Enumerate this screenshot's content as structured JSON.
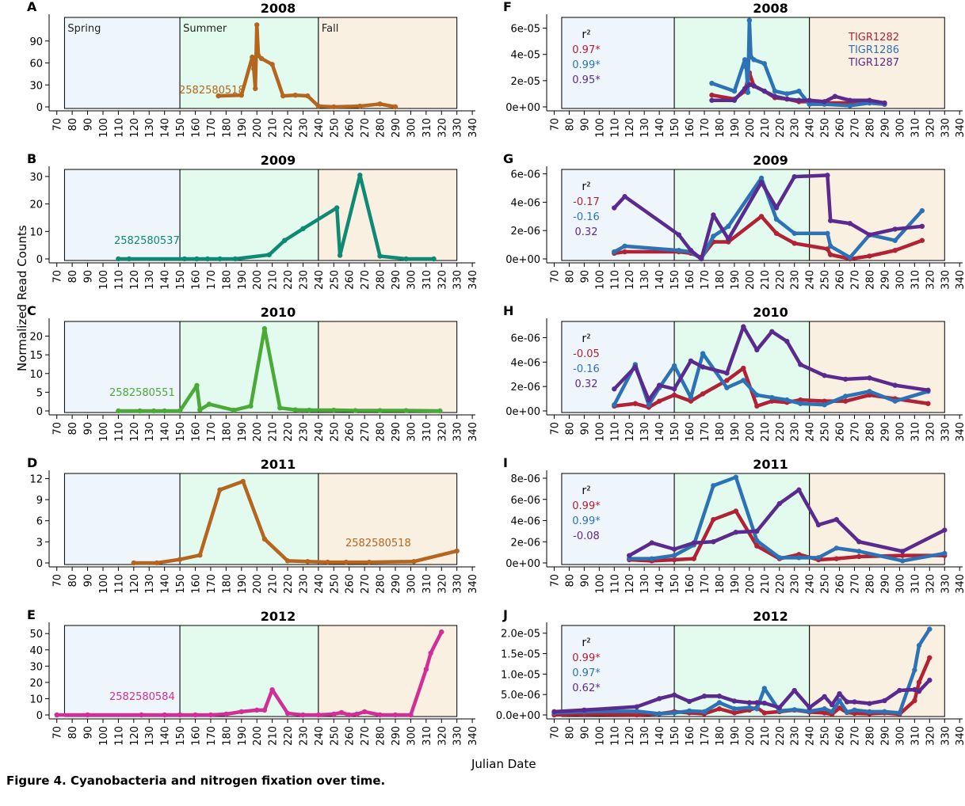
{
  "figure": {
    "caption": "Figure 4. Cyanobacteria and nitrogen fixation over time.",
    "x_axis_title": "Julian Date",
    "y_axis_title": "Normalized Read Counts",
    "season_labels": [
      "Spring",
      "Summer",
      "Fall"
    ],
    "season_colors": {
      "spring": "#eef6fb",
      "summer": "#e3fbee",
      "fall": "#faf0e2"
    },
    "legend": [
      {
        "name": "TIGR1282",
        "color": "#b22234"
      },
      {
        "name": "TIGR1286",
        "color": "#2c72b5"
      },
      {
        "name": "TIGR1287",
        "color": "#5b2a8e"
      }
    ],
    "r2_header": "r²"
  },
  "chart_data": [
    {
      "panel": "A",
      "title": "2008",
      "type": "line",
      "color": "#b5651d",
      "series_label": "2582580518",
      "xlim": [
        65,
        335
      ],
      "ylim": [
        0,
        120
      ],
      "yticks": [
        0,
        30,
        60,
        90
      ],
      "x": [
        175,
        190,
        197,
        198,
        199,
        200,
        201,
        203,
        210,
        217,
        225,
        233,
        240,
        250,
        267,
        280,
        290
      ],
      "y": [
        15,
        16,
        68,
        52,
        25,
        112,
        70,
        66,
        58,
        15,
        16,
        15,
        1,
        0,
        1,
        4,
        0
      ]
    },
    {
      "panel": "B",
      "title": "2009",
      "type": "line",
      "color": "#0e8a74",
      "series_label": "2582580537",
      "xlim": [
        65,
        335
      ],
      "ylim": [
        0,
        32
      ],
      "yticks": [
        0,
        10,
        20,
        30
      ],
      "x": [
        110,
        117,
        153,
        161,
        168,
        176,
        186,
        208,
        218,
        230,
        252,
        254,
        267,
        280,
        297,
        315
      ],
      "y": [
        0,
        0,
        0,
        0,
        0,
        0,
        0,
        1.5,
        6.7,
        11,
        18.6,
        1.3,
        30.5,
        1,
        0,
        0
      ]
    },
    {
      "panel": "C",
      "title": "2010",
      "type": "line",
      "color": "#4aaa36",
      "series_label": "2582580551",
      "xlim": [
        65,
        335
      ],
      "ylim": [
        0,
        23.5
      ],
      "yticks": [
        0,
        5,
        10,
        15,
        20
      ],
      "x": [
        110,
        124,
        133,
        140,
        150,
        161,
        163,
        169,
        185,
        196,
        205,
        215,
        225,
        234,
        250,
        264,
        280,
        297,
        319
      ],
      "y": [
        0,
        0,
        0,
        0,
        0,
        6.8,
        0.3,
        1.8,
        0.2,
        1.3,
        22,
        0.8,
        0.3,
        0.2,
        0.2,
        0.1,
        0.1,
        0.1,
        0
      ]
    },
    {
      "panel": "D",
      "title": "2011",
      "type": "line",
      "color": "#b5651d",
      "series_label": "2582580518",
      "xlim": [
        65,
        335
      ],
      "ylim": [
        0,
        12.5
      ],
      "yticks": [
        0,
        3,
        6,
        9,
        12
      ],
      "x": [
        120,
        135,
        150,
        163,
        176,
        191,
        205,
        220,
        233,
        246,
        258,
        273,
        302,
        330
      ],
      "y": [
        0,
        0,
        0.5,
        1.1,
        10.4,
        11.6,
        3.4,
        0.3,
        0.2,
        0.1,
        0.1,
        0.1,
        0.2,
        1.7
      ]
    },
    {
      "panel": "E",
      "title": "2012",
      "type": "line",
      "color": "#d12e97",
      "series_label": "2582580584",
      "xlim": [
        65,
        335
      ],
      "ylim": [
        0,
        54
      ],
      "yticks": [
        0,
        10,
        20,
        30,
        40,
        50
      ],
      "x": [
        70,
        90,
        125,
        140,
        150,
        160,
        170,
        180,
        190,
        200,
        205,
        210,
        220,
        230,
        240,
        250,
        255,
        260,
        265,
        270,
        280,
        290,
        300,
        310,
        313,
        320
      ],
      "y": [
        0,
        0,
        0,
        0,
        0,
        0,
        0,
        0.5,
        2,
        3,
        3,
        15.5,
        1,
        0,
        0,
        0.5,
        1.5,
        0,
        0.5,
        2,
        0,
        0,
        0,
        28,
        38,
        51
      ]
    },
    {
      "panel": "F",
      "title": "2008",
      "type": "line",
      "ylim": [
        0,
        6.7e-05
      ],
      "ytick_labels": [
        "0e+00",
        "2e-05",
        "4e-05",
        "6e-05"
      ],
      "yticks": [
        0,
        2e-05,
        4e-05,
        6e-05
      ],
      "xlim": [
        65,
        335
      ],
      "r2": [
        "0.97*",
        "0.99*",
        "0.95*"
      ],
      "show_legend": true,
      "series": [
        {
          "name": "TIGR1282",
          "color": "#b22234",
          "x": [
            175,
            190,
            197,
            200,
            203,
            210,
            217,
            225,
            233,
            240,
            250,
            267,
            280,
            290
          ],
          "y": [
            9e-06,
            6e-06,
            1.2e-05,
            2.6e-05,
            1.6e-05,
            1.2e-05,
            7e-06,
            6e-06,
            4e-06,
            4e-06,
            3e-06,
            3e-06,
            3e-06,
            2e-06
          ]
        },
        {
          "name": "TIGR1286",
          "color": "#2c72b5",
          "x": [
            175,
            190,
            197,
            198,
            199,
            200,
            201,
            203,
            210,
            217,
            225,
            233,
            240,
            250,
            267,
            280,
            290
          ],
          "y": [
            1.8e-05,
            1.2e-05,
            3.6e-05,
            3e-05,
            1.1e-05,
            6.6e-05,
            3.8e-05,
            3.6e-05,
            3.3e-05,
            1.2e-05,
            1e-05,
            1.2e-05,
            2e-06,
            2e-06,
            1e-06,
            3e-06,
            2e-06
          ]
        },
        {
          "name": "TIGR1287",
          "color": "#5b2a8e",
          "x": [
            175,
            190,
            197,
            200,
            203,
            210,
            217,
            225,
            233,
            240,
            250,
            257,
            267,
            280,
            290
          ],
          "y": [
            5e-06,
            5e-06,
            1.4e-05,
            1.7e-05,
            1.6e-05,
            1.2e-05,
            8e-06,
            6e-06,
            5e-06,
            5e-06,
            4e-06,
            8e-06,
            5e-06,
            5e-06,
            3e-06
          ]
        }
      ]
    },
    {
      "panel": "G",
      "title": "2009",
      "type": "line",
      "ylim": [
        0,
        6.2e-06
      ],
      "ytick_labels": [
        "0e+00",
        "2e-06",
        "4e-06",
        "6e-06"
      ],
      "yticks": [
        0,
        2e-06,
        4e-06,
        6e-06
      ],
      "xlim": [
        65,
        335
      ],
      "r2": [
        "-0.17",
        "-0.16",
        "0.32"
      ],
      "show_legend": false,
      "series": [
        {
          "name": "TIGR1282",
          "color": "#b22234",
          "x": [
            110,
            117,
            153,
            161,
            168,
            176,
            186,
            208,
            218,
            230,
            252,
            254,
            267,
            280,
            297,
            315
          ],
          "y": [
            4e-07,
            5e-07,
            5e-07,
            4e-07,
            1e-07,
            1.2e-06,
            1.2e-06,
            3e-06,
            1.8e-06,
            1.1e-06,
            7e-07,
            3e-07,
            0.0,
            2e-07,
            6e-07,
            1.3e-06
          ]
        },
        {
          "name": "TIGR1286",
          "color": "#2c72b5",
          "x": [
            110,
            117,
            153,
            161,
            168,
            176,
            186,
            208,
            218,
            230,
            252,
            254,
            267,
            280,
            297,
            315
          ],
          "y": [
            5e-07,
            9e-07,
            6e-07,
            5e-07,
            0.0,
            1.6e-06,
            2.3e-06,
            5.7e-06,
            2.8e-06,
            1.8e-06,
            1.8e-06,
            9e-07,
            1e-07,
            1.7e-06,
            1.3e-06,
            3.4e-06
          ]
        },
        {
          "name": "TIGR1287",
          "color": "#5b2a8e",
          "x": [
            110,
            117,
            153,
            161,
            168,
            176,
            186,
            208,
            218,
            230,
            252,
            254,
            267,
            280,
            297,
            315
          ],
          "y": [
            3.6e-06,
            4.4e-06,
            1.7e-06,
            6e-07,
            0.0,
            3.1e-06,
            1.4e-06,
            5.4e-06,
            3.6e-06,
            5.8e-06,
            5.9e-06,
            2.7e-06,
            2.5e-06,
            1.7e-06,
            2.1e-06,
            2.3e-06
          ]
        }
      ]
    },
    {
      "panel": "H",
      "title": "2010",
      "type": "line",
      "ylim": [
        0,
        7.2e-06
      ],
      "ytick_labels": [
        "0e+00",
        "2e-06",
        "4e-06",
        "6e-06"
      ],
      "yticks": [
        0,
        2e-06,
        4e-06,
        6e-06
      ],
      "xlim": [
        65,
        335
      ],
      "r2": [
        "-0.05",
        "-0.16",
        "0.32"
      ],
      "show_legend": false,
      "series": [
        {
          "name": "TIGR1282",
          "color": "#b22234",
          "x": [
            110,
            124,
            133,
            140,
            150,
            161,
            169,
            185,
            196,
            205,
            215,
            225,
            234,
            250,
            264,
            280,
            297,
            319
          ],
          "y": [
            4e-07,
            6e-07,
            3e-07,
            8e-07,
            1.3e-06,
            8e-07,
            1.4e-06,
            2.5e-06,
            3.5e-06,
            4e-07,
            8e-07,
            7e-07,
            9e-07,
            8e-07,
            8e-07,
            1.3e-06,
            1e-06,
            6e-07
          ]
        },
        {
          "name": "TIGR1286",
          "color": "#2c72b5",
          "x": [
            110,
            124,
            133,
            140,
            150,
            161,
            169,
            185,
            196,
            205,
            215,
            225,
            234,
            250,
            264,
            280,
            297,
            319
          ],
          "y": [
            5e-07,
            3.8e-06,
            5e-07,
            1.9e-06,
            3.7e-06,
            1.1e-06,
            4.7e-06,
            1.9e-06,
            2.5e-06,
            1.3e-06,
            1.1e-06,
            9e-07,
            6e-07,
            5e-07,
            1.2e-06,
            1.6e-06,
            8e-07,
            1.6e-06
          ]
        },
        {
          "name": "TIGR1287",
          "color": "#5b2a8e",
          "x": [
            110,
            124,
            133,
            140,
            150,
            161,
            169,
            185,
            196,
            205,
            215,
            225,
            234,
            250,
            264,
            280,
            297,
            319
          ],
          "y": [
            1.8e-06,
            3.6e-06,
            9e-07,
            2.1e-06,
            1.8e-06,
            4.1e-06,
            3.6e-06,
            3.1e-06,
            6.9e-06,
            5e-06,
            6.5e-06,
            5.7e-06,
            3.8e-06,
            2.9e-06,
            2.6e-06,
            2.7e-06,
            2.1e-06,
            1.7e-06
          ]
        }
      ]
    },
    {
      "panel": "I",
      "title": "2011",
      "type": "line",
      "ylim": [
        0,
        8.3e-06
      ],
      "ytick_labels": [
        "0e+00",
        "2e-06",
        "4e-06",
        "6e-06",
        "8e-06"
      ],
      "yticks": [
        0,
        2e-06,
        4e-06,
        6e-06,
        8e-06
      ],
      "xlim": [
        65,
        335
      ],
      "r2": [
        "0.99*",
        "0.99*",
        "-0.08"
      ],
      "show_legend": false,
      "series": [
        {
          "name": "TIGR1282",
          "color": "#b22234",
          "x": [
            120,
            135,
            150,
            163,
            176,
            191,
            205,
            220,
            233,
            246,
            258,
            273,
            302,
            330
          ],
          "y": [
            3e-07,
            2e-07,
            3e-07,
            4e-07,
            4.1e-06,
            4.9e-06,
            1.6e-06,
            4e-07,
            8e-07,
            3e-07,
            4e-07,
            6e-07,
            7e-07,
            7e-07
          ]
        },
        {
          "name": "TIGR1286",
          "color": "#2c72b5",
          "x": [
            120,
            135,
            150,
            163,
            176,
            191,
            205,
            220,
            233,
            246,
            258,
            273,
            302,
            330
          ],
          "y": [
            4e-07,
            4e-07,
            7e-07,
            1.7e-06,
            7.3e-06,
            8.1e-06,
            2.1e-06,
            5e-07,
            5e-07,
            5e-07,
            1.4e-06,
            1.1e-06,
            2e-07,
            9e-07
          ]
        },
        {
          "name": "TIGR1287",
          "color": "#5b2a8e",
          "x": [
            120,
            135,
            150,
            163,
            176,
            191,
            205,
            220,
            233,
            246,
            258,
            273,
            302,
            330
          ],
          "y": [
            7e-07,
            1.9e-06,
            1.3e-06,
            1.9e-06,
            2e-06,
            2.9e-06,
            3e-06,
            5.6e-06,
            6.9e-06,
            3.6e-06,
            4.1e-06,
            2e-06,
            1.1e-06,
            3.1e-06
          ]
        }
      ]
    },
    {
      "panel": "J",
      "title": "2012",
      "type": "line",
      "ylim": [
        0,
        2.15e-05
      ],
      "ytick_labels": [
        "0.0e+00",
        "5.0e-06",
        "1.0e-05",
        "1.5e-05",
        "2.0e-05"
      ],
      "yticks": [
        0,
        5e-06,
        1e-05,
        1.5e-05,
        2e-05
      ],
      "xlim": [
        65,
        335
      ],
      "r2": [
        "0.99*",
        "0.97*",
        "0.62*"
      ],
      "show_legend": false,
      "series": [
        {
          "name": "TIGR1282",
          "color": "#b22234",
          "x": [
            70,
            90,
            125,
            140,
            150,
            160,
            170,
            180,
            190,
            200,
            205,
            210,
            220,
            230,
            240,
            250,
            255,
            260,
            265,
            270,
            280,
            290,
            300,
            310,
            313,
            320
          ],
          "y": [
            0.0,
            2e-07,
            0.0,
            3e-07,
            8e-07,
            5e-07,
            3e-07,
            1.5e-06,
            5e-07,
            1.2e-06,
            1.8e-06,
            5e-07,
            8e-07,
            1.2e-06,
            7e-07,
            5e-07,
            2e-07,
            1.7e-06,
            6e-07,
            4e-07,
            3e-07,
            5e-07,
            2e-07,
            3.5e-06,
            8e-06,
            1.4e-05
          ]
        },
        {
          "name": "TIGR1286",
          "color": "#2c72b5",
          "x": [
            70,
            90,
            125,
            140,
            150,
            160,
            170,
            180,
            190,
            200,
            205,
            210,
            220,
            230,
            240,
            250,
            255,
            260,
            265,
            270,
            280,
            290,
            300,
            310,
            313,
            320
          ],
          "y": [
            5e-07,
            8e-07,
            9e-07,
            3e-07,
            5e-07,
            1e-06,
            8e-07,
            3e-06,
            1.5e-06,
            1.8e-06,
            1.5e-06,
            6.5e-06,
            1e-06,
            1.3e-06,
            9e-07,
            1.5e-06,
            8e-07,
            3.5e-06,
            7e-07,
            1.2e-06,
            8e-07,
            8e-07,
            5e-07,
            1.1e-05,
            1.7e-05,
            2.1e-05
          ]
        },
        {
          "name": "TIGR1287",
          "color": "#5b2a8e",
          "x": [
            70,
            90,
            125,
            140,
            150,
            160,
            170,
            180,
            190,
            200,
            205,
            210,
            220,
            230,
            240,
            250,
            255,
            260,
            265,
            270,
            280,
            290,
            300,
            310,
            313,
            320
          ],
          "y": [
            8e-07,
            1.2e-06,
            2e-06,
            4e-06,
            4.9e-06,
            3.3e-06,
            4.6e-06,
            4.6e-06,
            3.4e-06,
            3e-06,
            3e-06,
            2.9e-06,
            1.8e-06,
            6e-06,
            1.8e-06,
            4.5e-06,
            2.5e-06,
            5.2e-06,
            3.2e-06,
            3.2e-06,
            2.8e-06,
            3.5e-06,
            6e-06,
            6.2e-06,
            5.8e-06,
            8.5e-06
          ]
        }
      ]
    }
  ]
}
